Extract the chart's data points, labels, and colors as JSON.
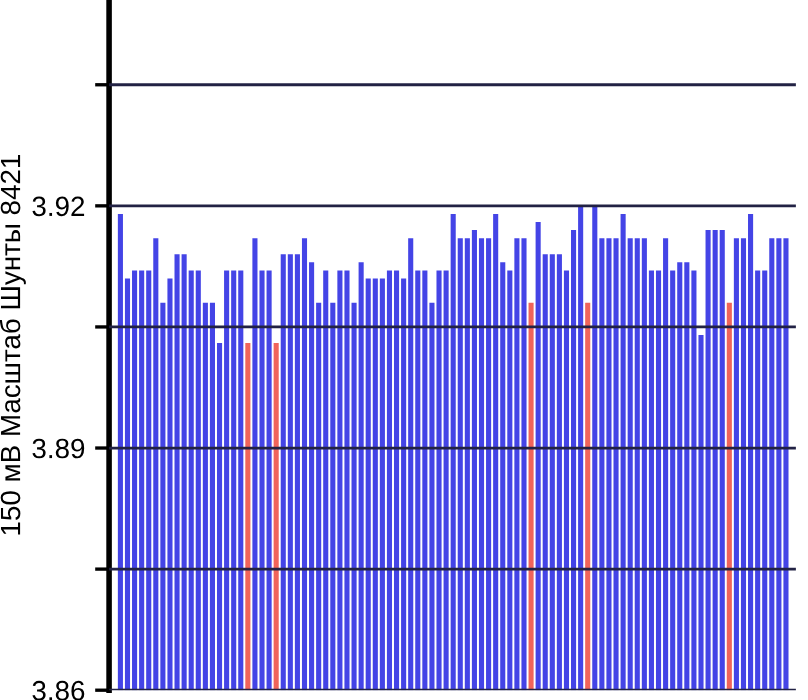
{
  "chart_data": {
    "type": "bar",
    "ylabel": "150 мВ Масштаб Шунты 8421",
    "categories": [
      null,
      null,
      null,
      null,
      null,
      null,
      null,
      null,
      null,
      null,
      null,
      null,
      null,
      null,
      null,
      null,
      null,
      null,
      null,
      null,
      null,
      null,
      null,
      null,
      null,
      null,
      null,
      null,
      null,
      null,
      null,
      null,
      null,
      null,
      null,
      null,
      null,
      null,
      null,
      null,
      null,
      null,
      null,
      null,
      null,
      null,
      null,
      null,
      null,
      null,
      null,
      null,
      null,
      null,
      null,
      null,
      null,
      null,
      null,
      null,
      null,
      null,
      null,
      null,
      null,
      null,
      null,
      null,
      null,
      null,
      null,
      null,
      null,
      null,
      null,
      null,
      null,
      null,
      null,
      null,
      null,
      null,
      null,
      null,
      null,
      null,
      null,
      null,
      null,
      null,
      null,
      null,
      null,
      null,
      null
    ],
    "values": [
      3.919,
      3.911,
      3.912,
      3.912,
      3.912,
      3.916,
      3.908,
      3.911,
      3.914,
      3.914,
      3.912,
      3.912,
      3.908,
      3.908,
      3.903,
      3.912,
      3.912,
      3.912,
      3.903,
      3.916,
      3.912,
      3.912,
      3.903,
      3.914,
      3.914,
      3.914,
      3.916,
      3.913,
      3.908,
      3.912,
      3.908,
      3.912,
      3.912,
      3.908,
      3.913,
      3.911,
      3.911,
      3.911,
      3.912,
      3.912,
      3.911,
      3.916,
      3.912,
      3.912,
      3.908,
      3.912,
      3.912,
      3.919,
      3.916,
      3.916,
      3.917,
      3.916,
      3.916,
      3.919,
      3.913,
      3.912,
      3.916,
      3.916,
      3.908,
      3.918,
      3.914,
      3.914,
      3.914,
      3.912,
      3.917,
      3.92,
      3.908,
      3.92,
      3.916,
      3.916,
      3.916,
      3.919,
      3.916,
      3.916,
      3.916,
      3.912,
      3.912,
      3.916,
      3.912,
      3.913,
      3.913,
      3.912,
      3.904,
      3.917,
      3.917,
      3.917,
      3.908,
      3.916,
      3.916,
      3.919,
      3.912,
      3.912,
      3.916,
      3.916,
      3.916
    ],
    "colors": [
      "#4444e6",
      "#4444e6",
      "#4444e6",
      "#4444e6",
      "#4444e6",
      "#4444e6",
      "#4444e6",
      "#4444e6",
      "#4444e6",
      "#4444e6",
      "#4444e6",
      "#4444e6",
      "#4444e6",
      "#4444e6",
      "#4444e6",
      "#4444e6",
      "#4444e6",
      "#4444e6",
      "#f0645a",
      "#4444e6",
      "#4444e6",
      "#4444e6",
      "#f0645a",
      "#4444e6",
      "#4444e6",
      "#4444e6",
      "#4444e6",
      "#4444e6",
      "#4444e6",
      "#4444e6",
      "#4444e6",
      "#4444e6",
      "#4444e6",
      "#4444e6",
      "#4444e6",
      "#4444e6",
      "#4444e6",
      "#4444e6",
      "#4444e6",
      "#4444e6",
      "#4444e6",
      "#4444e6",
      "#4444e6",
      "#4444e6",
      "#4444e6",
      "#4444e6",
      "#4444e6",
      "#4444e6",
      "#4444e6",
      "#4444e6",
      "#4444e6",
      "#4444e6",
      "#4444e6",
      "#4444e6",
      "#4444e6",
      "#4444e6",
      "#4444e6",
      "#4444e6",
      "#f0645a",
      "#4444e6",
      "#4444e6",
      "#4444e6",
      "#4444e6",
      "#4444e6",
      "#4444e6",
      "#4444e6",
      "#f0645a",
      "#4444e6",
      "#4444e6",
      "#4444e6",
      "#4444e6",
      "#4444e6",
      "#4444e6",
      "#4444e6",
      "#4444e6",
      "#4444e6",
      "#4444e6",
      "#4444e6",
      "#4444e6",
      "#4444e6",
      "#4444e6",
      "#4444e6",
      "#4444e6",
      "#4444e6",
      "#4444e6",
      "#4444e6",
      "#f0645a",
      "#4444e6",
      "#4444e6",
      "#4444e6",
      "#4444e6",
      "#4444e6",
      "#4444e6",
      "#4444e6",
      "#4444e6"
    ],
    "ylim": [
      3.86,
      3.9455
    ],
    "yticks": [
      3.86,
      {
        "value": 3.875,
        "label": null
      },
      3.89,
      {
        "value": 3.905,
        "label": null
      },
      3.92,
      {
        "value": 3.935,
        "label": null
      }
    ],
    "grid": "y",
    "tick_labels": "y"
  }
}
